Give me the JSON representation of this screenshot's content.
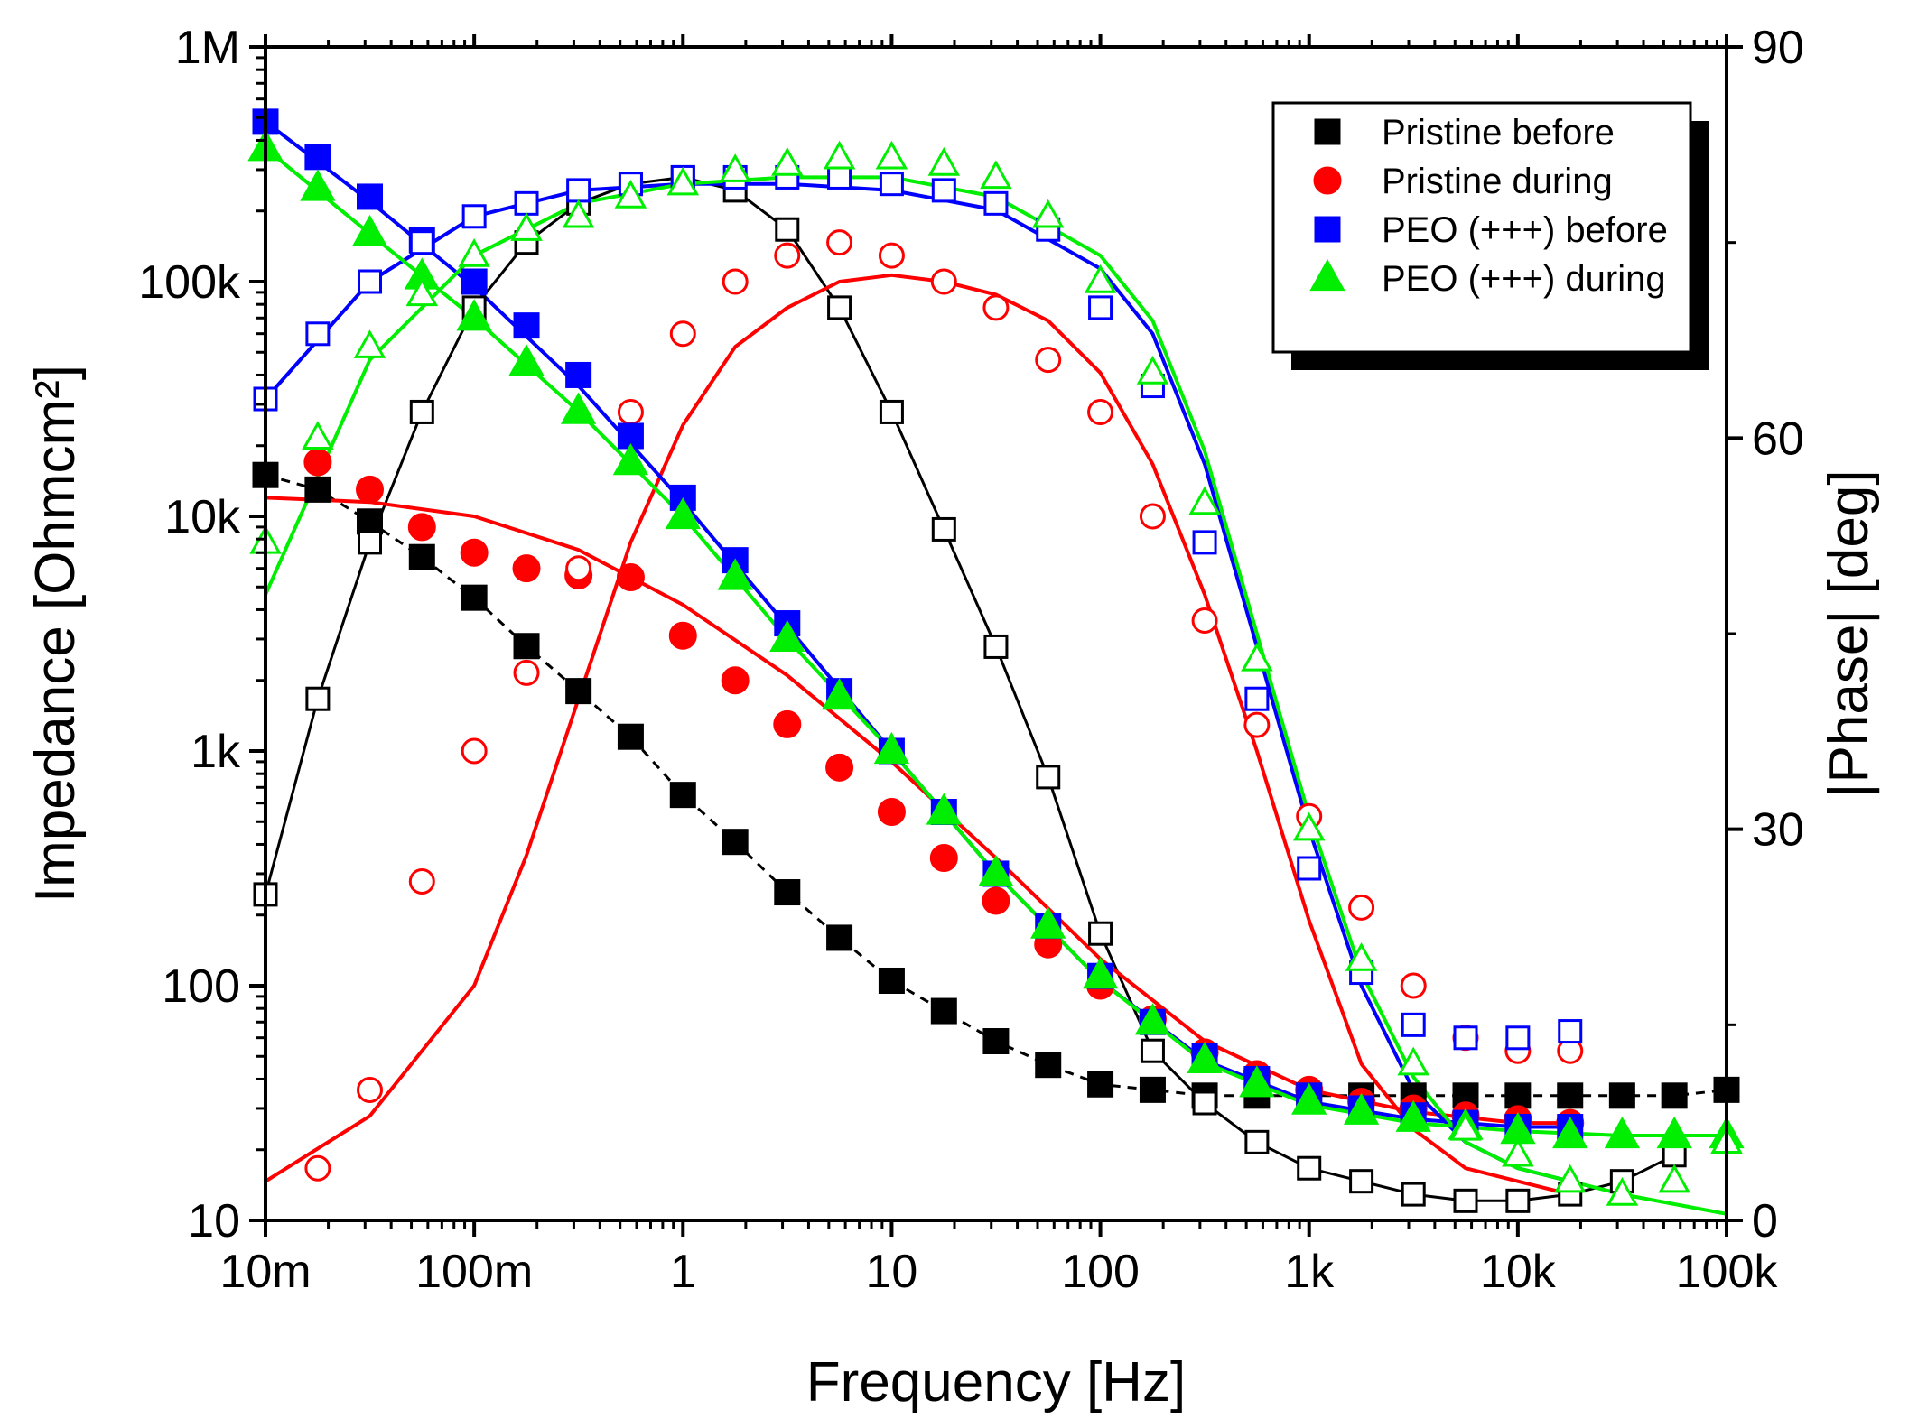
{
  "chart_data": {
    "type": "scatter",
    "title": "",
    "xlabel": "Frequency [Hz]",
    "ylabel": "Impedance [Ohmcm²]",
    "y2label": "|Phase| [deg]",
    "x_scale": "log",
    "y_scale": "log",
    "xlim": [
      0.01,
      100000
    ],
    "ylim": [
      10,
      1000000
    ],
    "y2lim": [
      0,
      90
    ],
    "x_ticks": [
      {
        "value": 0.01,
        "label": "10m"
      },
      {
        "value": 0.1,
        "label": "100m"
      },
      {
        "value": 1,
        "label": "1"
      },
      {
        "value": 10,
        "label": "10"
      },
      {
        "value": 100,
        "label": "100"
      },
      {
        "value": 1000,
        "label": "1k"
      },
      {
        "value": 10000,
        "label": "10k"
      },
      {
        "value": 100000,
        "label": "100k"
      }
    ],
    "y_ticks": [
      {
        "value": 10,
        "label": "10"
      },
      {
        "value": 100,
        "label": "100"
      },
      {
        "value": 1000,
        "label": "1k"
      },
      {
        "value": 10000,
        "label": "10k"
      },
      {
        "value": 100000,
        "label": "100k"
      },
      {
        "value": 1000000,
        "label": "1M"
      }
    ],
    "y2_ticks": [
      {
        "value": 0,
        "label": "0"
      },
      {
        "value": 30,
        "label": "30"
      },
      {
        "value": 60,
        "label": "60"
      },
      {
        "value": 90,
        "label": "90"
      }
    ],
    "legend_position": "top-right",
    "legend": [
      {
        "name": "Pristine before",
        "color": "#000000",
        "marker": "square"
      },
      {
        "name": "Pristine during",
        "color": "#ff0000",
        "marker": "circle"
      },
      {
        "name": "PEO (+++) before",
        "color": "#0000ff",
        "marker": "square"
      },
      {
        "name": "PEO (+++) during",
        "color": "#00ee00",
        "marker": "triangle"
      }
    ],
    "series": [
      {
        "name": "Pristine before |Z|",
        "axis": "left",
        "marker": "square",
        "filled": true,
        "color": "#000000",
        "connect": "dashed",
        "x": [
          0.01,
          0.0178,
          0.0316,
          0.0562,
          0.1,
          0.178,
          0.316,
          0.562,
          1,
          1.78,
          3.16,
          5.62,
          10,
          17.8,
          31.6,
          56.2,
          100,
          178,
          316,
          562,
          1000,
          1780,
          3160,
          5620,
          10000,
          17800,
          31600,
          56200,
          100000
        ],
        "y": [
          15000,
          13000,
          9500,
          6700,
          4500,
          2800,
          1800,
          1150,
          650,
          410,
          250,
          160,
          105,
          78,
          58,
          46,
          38,
          36,
          34,
          34,
          34,
          34,
          34,
          34,
          34,
          34,
          34,
          34,
          36
        ]
      },
      {
        "name": "Pristine before phase",
        "axis": "right",
        "marker": "square",
        "filled": false,
        "color": "#000000",
        "connect": "solid",
        "x": [
          0.01,
          0.0178,
          0.0316,
          0.0562,
          0.1,
          0.178,
          0.316,
          0.562,
          1,
          1.78,
          3.16,
          5.62,
          10,
          17.8,
          31.6,
          56.2,
          100,
          178,
          316,
          562,
          1000,
          1780,
          3160,
          5620,
          10000,
          17800,
          31600,
          56200
        ],
        "y": [
          25,
          40,
          52,
          62,
          70,
          75,
          78,
          79.5,
          80,
          79,
          76,
          70,
          62,
          53,
          44,
          34,
          22,
          13,
          9,
          6,
          4,
          3,
          2,
          1.5,
          1.5,
          2,
          3,
          5
        ]
      },
      {
        "name": "Pristine during |Z|",
        "axis": "left",
        "marker": "circle",
        "filled": true,
        "color": "#ff0000",
        "connect": "none",
        "x": [
          0.0178,
          0.0316,
          0.0562,
          0.1,
          0.178,
          0.316,
          0.562,
          1,
          1.78,
          3.16,
          5.62,
          10,
          17.8,
          31.6,
          56.2,
          100,
          178,
          316,
          562,
          1000,
          1780,
          3160,
          5620,
          10000,
          17800
        ],
        "y": [
          17000,
          13000,
          9000,
          7000,
          6000,
          5600,
          5500,
          3100,
          2000,
          1300,
          850,
          550,
          350,
          230,
          150,
          100,
          72,
          52,
          42,
          36,
          32,
          30,
          28,
          27,
          26
        ]
      },
      {
        "name": "Pristine during phase",
        "axis": "right",
        "marker": "circle",
        "filled": false,
        "color": "#ff0000",
        "connect": "none",
        "x": [
          0.0178,
          0.0316,
          0.0562,
          0.1,
          0.178,
          0.316,
          0.562,
          1,
          1.78,
          3.16,
          5.62,
          10,
          17.8,
          31.6,
          56.2,
          100,
          178,
          316,
          562,
          1000,
          1780,
          3160,
          5620,
          10000,
          17800
        ],
        "y": [
          4,
          10,
          26,
          36,
          42,
          50,
          62,
          68,
          72,
          74,
          75,
          74,
          72,
          70,
          66,
          62,
          54,
          46,
          38,
          31,
          24,
          18,
          14,
          13,
          13
        ]
      },
      {
        "name": "PEO (+++) before |Z|",
        "axis": "left",
        "marker": "square",
        "filled": true,
        "color": "#0000ff",
        "connect": "none",
        "x": [
          0.01,
          0.0178,
          0.0316,
          0.0562,
          0.1,
          0.178,
          0.316,
          0.562,
          1,
          1.78,
          3.16,
          5.62,
          10,
          17.8,
          31.6,
          56.2,
          100,
          178,
          316,
          562,
          1000,
          1780,
          3160,
          5620,
          10000,
          17800
        ],
        "y": [
          480000,
          340000,
          230000,
          150000,
          100000,
          65000,
          40000,
          22000,
          12000,
          6500,
          3500,
          1800,
          1000,
          550,
          300,
          180,
          110,
          70,
          50,
          40,
          34,
          30,
          28,
          26,
          25,
          25
        ]
      },
      {
        "name": "PEO (+++) before phase",
        "axis": "right",
        "marker": "square",
        "filled": false,
        "color": "#0000ff",
        "connect": "none",
        "x": [
          0.01,
          0.0178,
          0.0316,
          0.0562,
          0.1,
          0.178,
          0.316,
          0.562,
          1,
          1.78,
          3.16,
          5.62,
          10,
          17.8,
          31.6,
          56.2,
          100,
          178,
          316,
          562,
          1000,
          1780,
          3160,
          5620,
          10000,
          17800
        ],
        "y": [
          63,
          68,
          72,
          75,
          77,
          78,
          79,
          79.5,
          80,
          80,
          80,
          80,
          79.5,
          79,
          78,
          76,
          70,
          64,
          52,
          40,
          27,
          19,
          15,
          14,
          14,
          14.5
        ]
      },
      {
        "name": "PEO (+++) during |Z|",
        "axis": "left",
        "marker": "triangle",
        "filled": true,
        "color": "#00ee00",
        "connect": "none",
        "x": [
          0.01,
          0.0178,
          0.0316,
          0.0562,
          0.1,
          0.178,
          0.316,
          0.562,
          1,
          1.78,
          3.16,
          5.62,
          10,
          17.8,
          31.6,
          56.2,
          100,
          178,
          316,
          562,
          1000,
          1780,
          3160,
          5620,
          10000,
          17800,
          31600,
          56200,
          100000
        ],
        "y": [
          370000,
          250000,
          160000,
          105000,
          70000,
          45000,
          28000,
          17000,
          10000,
          5500,
          3000,
          1700,
          1000,
          550,
          300,
          180,
          110,
          70,
          48,
          38,
          32,
          29,
          27,
          25,
          24,
          23,
          23,
          23,
          23
        ]
      },
      {
        "name": "PEO (+++) during phase",
        "axis": "right",
        "marker": "triangle",
        "filled": false,
        "color": "#00ee00",
        "connect": "none",
        "x": [
          0.01,
          0.0178,
          0.0316,
          0.0562,
          0.1,
          0.178,
          0.316,
          0.562,
          1,
          1.78,
          3.16,
          5.62,
          10,
          17.8,
          31.6,
          56.2,
          100,
          178,
          316,
          562,
          1000,
          1780,
          3160,
          5620,
          10000,
          17800,
          31600,
          56200,
          100000
        ],
        "y": [
          52,
          60,
          67,
          71,
          74,
          76,
          77,
          78.5,
          79.5,
          80.5,
          81,
          81.5,
          81.5,
          81,
          80,
          77,
          72,
          65,
          55,
          43,
          30,
          20,
          12,
          7,
          5,
          3,
          2,
          3,
          6
        ]
      },
      {
        "name": "Pristine during |Z| fit",
        "axis": "left",
        "marker": "none",
        "color": "#ff0000",
        "connect": "solid",
        "x": [
          0.01,
          0.0316,
          0.1,
          0.316,
          1,
          3.16,
          10,
          31.6,
          100,
          316,
          1000,
          3160,
          10000,
          17800
        ],
        "y": [
          12000,
          11500,
          10000,
          7200,
          4200,
          2100,
          900,
          350,
          130,
          58,
          36,
          29,
          26,
          26
        ]
      },
      {
        "name": "Pristine during phase fit",
        "axis": "right",
        "marker": "none",
        "color": "#ff0000",
        "connect": "solid",
        "x": [
          0.01,
          0.0316,
          0.1,
          0.178,
          0.316,
          0.562,
          1,
          1.78,
          3.16,
          5.62,
          10,
          17.8,
          31.6,
          56.2,
          100,
          178,
          316,
          562,
          1000,
          1780,
          3160,
          5620,
          10000,
          17800
        ],
        "y": [
          3,
          8,
          18,
          28,
          40,
          52,
          61,
          67,
          70,
          72,
          72.5,
          72,
          71,
          69,
          65,
          58,
          48,
          36,
          23,
          12,
          7,
          4,
          3,
          2
        ]
      },
      {
        "name": "PEO (+++) before |Z| fit",
        "axis": "left",
        "marker": "none",
        "color": "#0000ff",
        "connect": "solid",
        "x": [
          0.01,
          0.0316,
          0.1,
          0.316,
          1,
          3.16,
          10,
          31.6,
          100,
          316,
          1000,
          3160,
          10000,
          17800
        ],
        "y": [
          480000,
          220000,
          95000,
          36000,
          11500,
          3400,
          1000,
          300,
          105,
          48,
          32,
          27,
          25,
          25
        ]
      },
      {
        "name": "PEO (+++) before phase fit",
        "axis": "right",
        "marker": "none",
        "color": "#0000ff",
        "connect": "solid",
        "x": [
          0.01,
          0.0316,
          0.1,
          0.316,
          1,
          3.16,
          10,
          31.6,
          100,
          178,
          316,
          562,
          1000,
          1780,
          3160,
          5620,
          10000,
          17800
        ],
        "y": [
          63,
          72,
          77,
          79,
          79.5,
          79.5,
          79,
          77.5,
          73,
          68,
          58,
          44,
          30,
          18,
          10,
          6,
          4,
          3
        ]
      },
      {
        "name": "PEO (+++) during |Z| fit",
        "axis": "left",
        "marker": "none",
        "color": "#00ee00",
        "connect": "solid",
        "x": [
          0.01,
          0.0316,
          0.1,
          0.316,
          1,
          3.16,
          10,
          31.6,
          100,
          316,
          1000,
          3160,
          10000,
          31600,
          100000
        ],
        "y": [
          370000,
          160000,
          70000,
          28000,
          10000,
          3000,
          1000,
          300,
          105,
          47,
          31,
          26,
          24,
          23,
          23
        ]
      },
      {
        "name": "PEO (+++) during phase fit",
        "axis": "right",
        "marker": "none",
        "color": "#00ee00",
        "connect": "solid",
        "x": [
          0.01,
          0.0316,
          0.1,
          0.316,
          1,
          3.16,
          10,
          31.6,
          100,
          178,
          316,
          562,
          1000,
          1780,
          3160,
          5620,
          10000,
          31600,
          100000
        ],
        "y": [
          48,
          66,
          74,
          78,
          79.5,
          80,
          80,
          78.5,
          74,
          69,
          59,
          45,
          31,
          19,
          11,
          6,
          4,
          2,
          0.5
        ]
      }
    ]
  }
}
